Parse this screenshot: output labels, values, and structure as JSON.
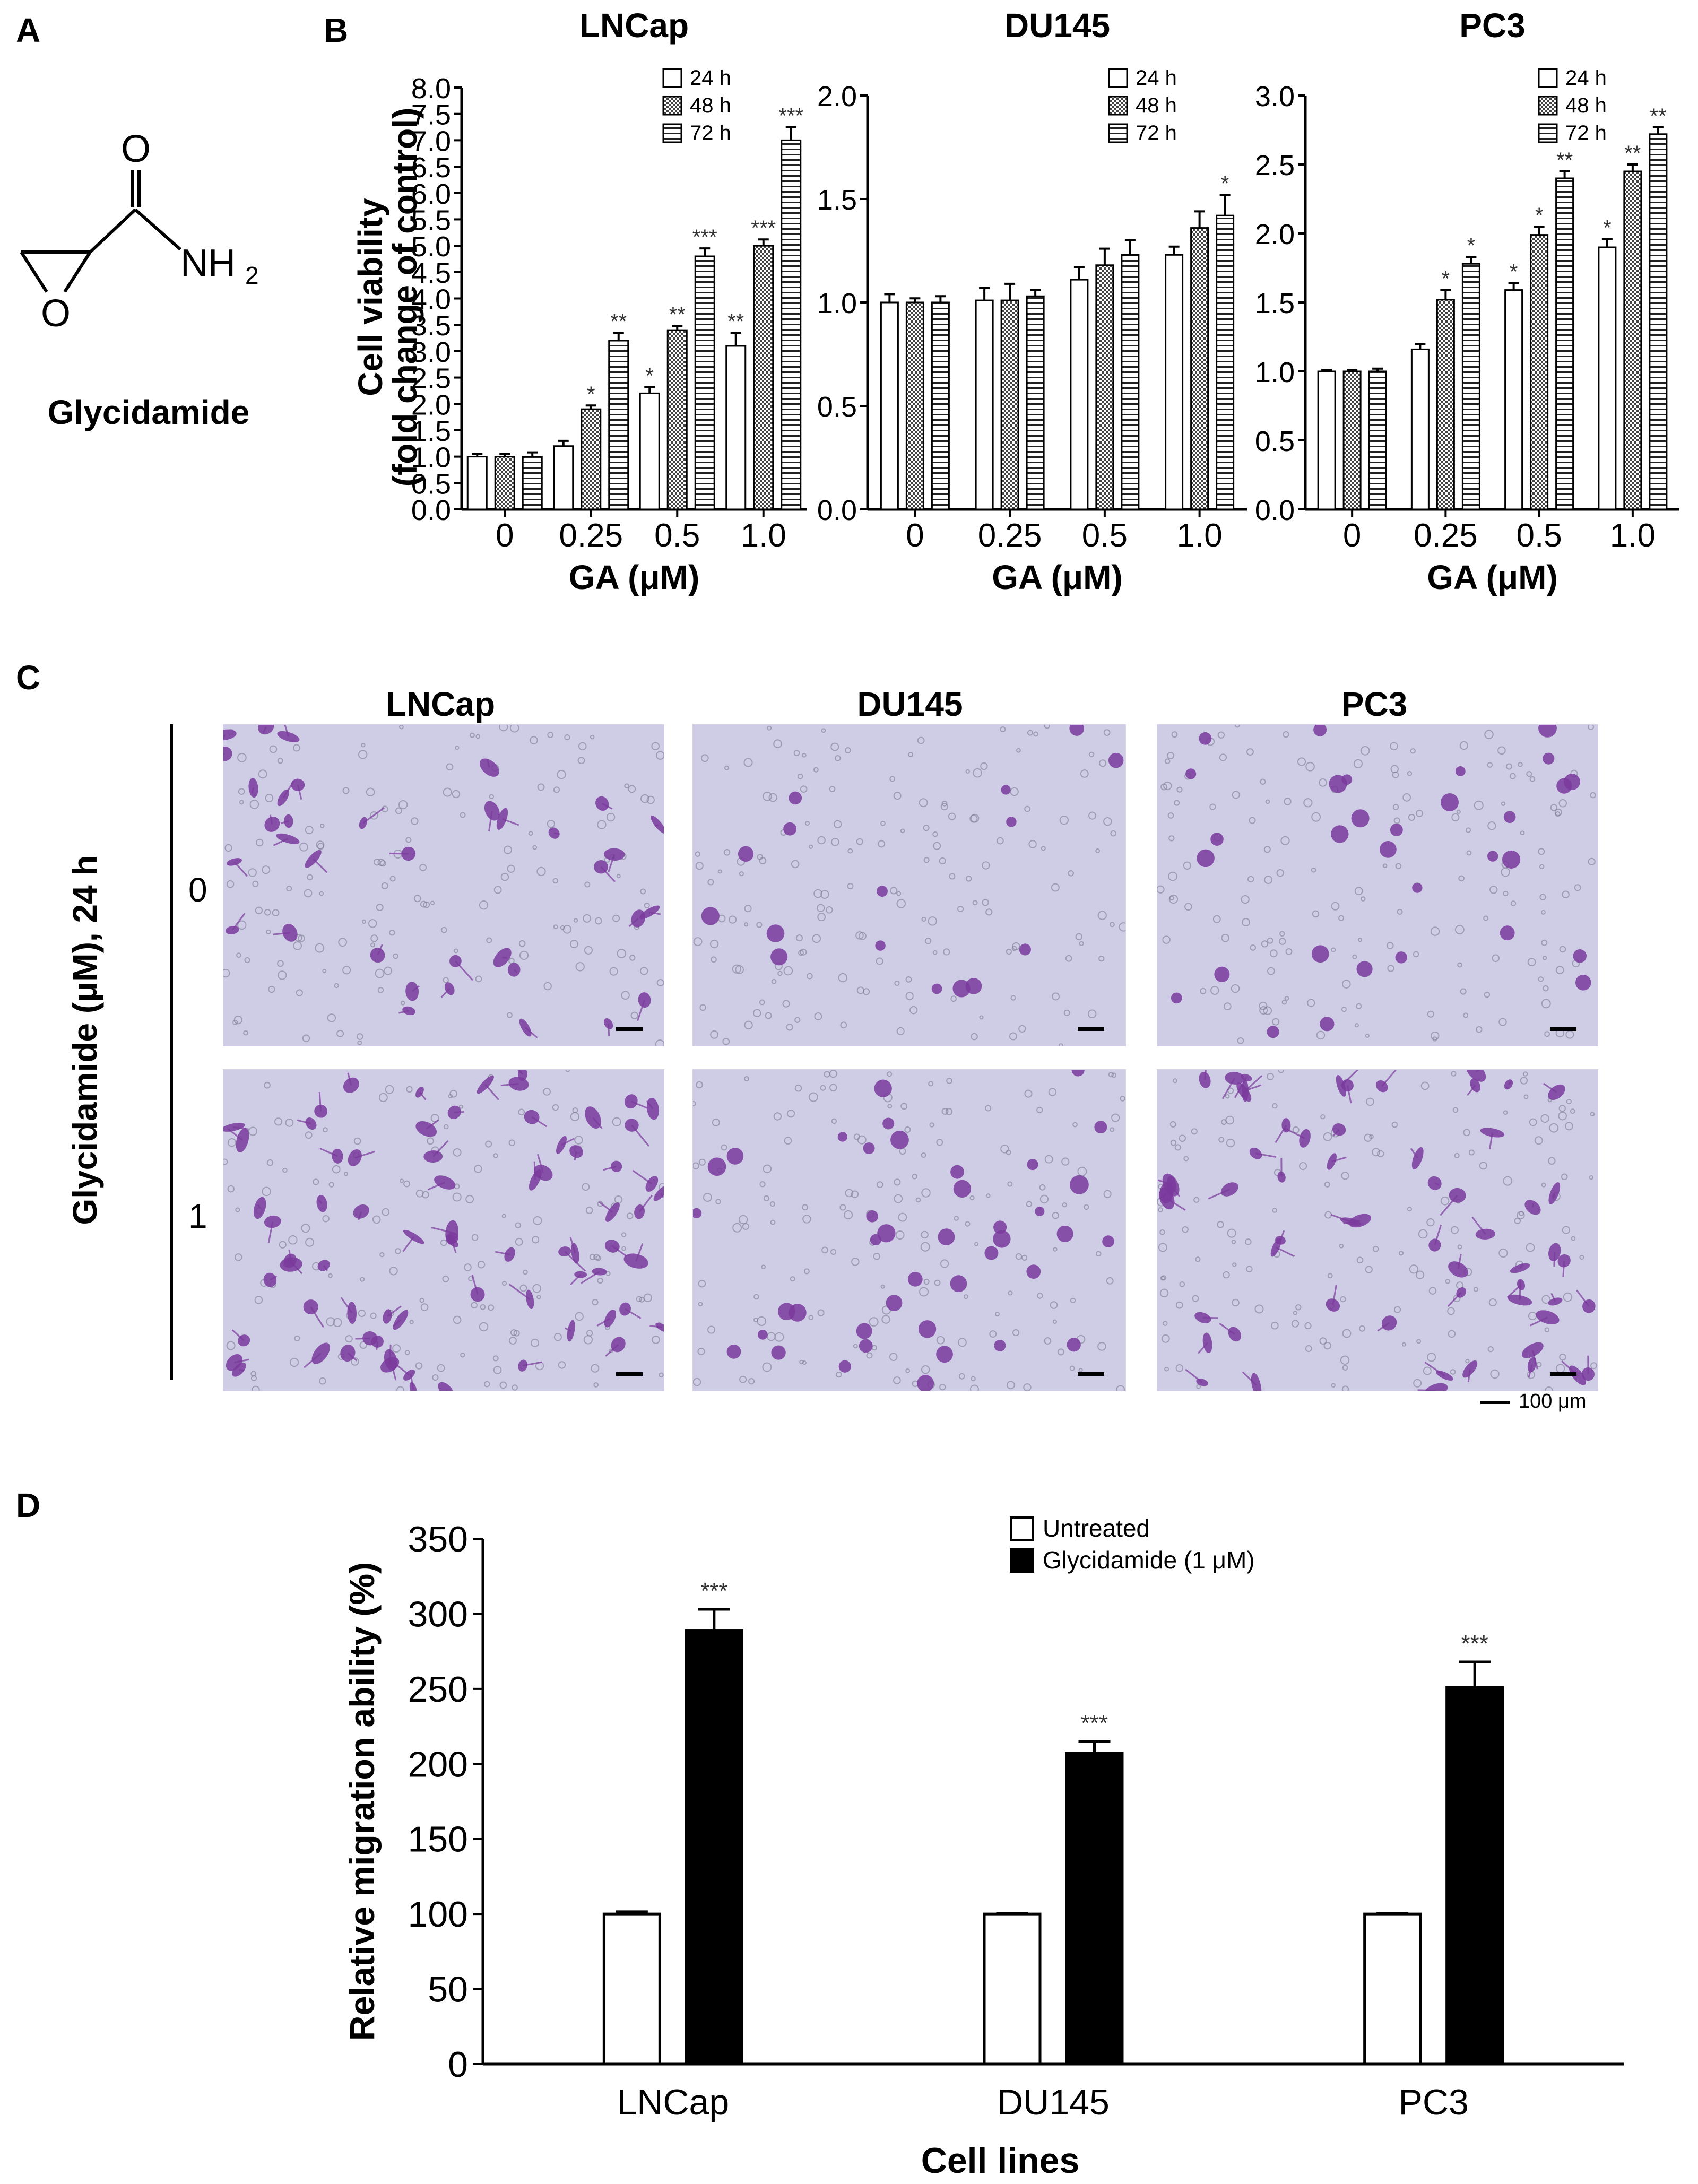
{
  "panels": {
    "a": {
      "letter": "A",
      "compound": "Glycidamide",
      "atom_o1": "O",
      "atom_nh": "NH",
      "atom_sub": "2",
      "atom_o2": "O"
    },
    "b": {
      "letter": "B"
    },
    "c": {
      "letter": "C"
    },
    "d": {
      "letter": "D"
    }
  },
  "chart_data": [
    {
      "type": "bar",
      "title": "LNCap",
      "xlabel": "GA (μM)",
      "ylabel": "Cell viability",
      "ylabel2": "(fold change of control)",
      "categories": [
        "0",
        "0.25",
        "0.5",
        "1.0"
      ],
      "ylim": [
        0,
        8
      ],
      "yticks": [
        "0.0",
        "0.5",
        "1.0",
        "1.5",
        "2.0",
        "2.5",
        "3.0",
        "3.5",
        "4.0",
        "4.5",
        "5.0",
        "5.5",
        "6.0",
        "6.5",
        "7.0",
        "7.5",
        "8.0"
      ],
      "legend_position": "top-right",
      "series": [
        {
          "name": "24 h",
          "values": [
            1.0,
            1.2,
            2.2,
            3.1
          ],
          "errors": [
            0.05,
            0.1,
            0.12,
            0.25
          ],
          "sig": [
            "",
            "",
            "*",
            "**"
          ]
        },
        {
          "name": "48 h",
          "values": [
            1.0,
            1.9,
            3.4,
            5.0
          ],
          "errors": [
            0.05,
            0.07,
            0.08,
            0.12
          ],
          "sig": [
            "",
            "*",
            "**",
            "***"
          ]
        },
        {
          "name": "72 h",
          "values": [
            1.0,
            3.2,
            4.8,
            7.0
          ],
          "errors": [
            0.08,
            0.15,
            0.15,
            0.25
          ],
          "sig": [
            "",
            "**",
            "***",
            "***"
          ]
        }
      ]
    },
    {
      "type": "bar",
      "title": "DU145",
      "xlabel": "GA (μM)",
      "categories": [
        "0",
        "0.25",
        "0.5",
        "1.0"
      ],
      "ylim": [
        0,
        2
      ],
      "yticks": [
        "0.0",
        "0.5",
        "1.0",
        "1.5",
        "2.0"
      ],
      "legend_position": "top-right",
      "series": [
        {
          "name": "24 h",
          "values": [
            1.0,
            1.01,
            1.11,
            1.23
          ],
          "errors": [
            0.04,
            0.06,
            0.06,
            0.04
          ],
          "sig": [
            "",
            "",
            "",
            ""
          ]
        },
        {
          "name": "48 h",
          "values": [
            1.0,
            1.01,
            1.18,
            1.36
          ],
          "errors": [
            0.02,
            0.08,
            0.08,
            0.08
          ],
          "sig": [
            "",
            "",
            "",
            ""
          ]
        },
        {
          "name": "72 h",
          "values": [
            1.0,
            1.03,
            1.23,
            1.42
          ],
          "errors": [
            0.03,
            0.03,
            0.07,
            0.1
          ],
          "sig": [
            "",
            "",
            "",
            "*"
          ]
        }
      ]
    },
    {
      "type": "bar",
      "title": "PC3",
      "xlabel": "GA (μM)",
      "categories": [
        "0",
        "0.25",
        "0.5",
        "1.0"
      ],
      "ylim": [
        0,
        3
      ],
      "yticks": [
        "0.0",
        "0.5",
        "1.0",
        "1.5",
        "2.0",
        "2.5",
        "3.0"
      ],
      "legend_position": "top-right",
      "series": [
        {
          "name": "24 h",
          "values": [
            1.0,
            1.16,
            1.59,
            1.9
          ],
          "errors": [
            0.01,
            0.04,
            0.05,
            0.06
          ],
          "sig": [
            "",
            "",
            "*",
            "*"
          ]
        },
        {
          "name": "48 h",
          "values": [
            1.0,
            1.52,
            1.99,
            2.45
          ],
          "errors": [
            0.01,
            0.07,
            0.06,
            0.05
          ],
          "sig": [
            "",
            "*",
            "*",
            "**"
          ]
        },
        {
          "name": "72 h",
          "values": [
            1.0,
            1.78,
            2.4,
            2.72
          ],
          "errors": [
            0.02,
            0.05,
            0.05,
            0.05
          ],
          "sig": [
            "",
            "*",
            "**",
            "**"
          ]
        }
      ]
    },
    {
      "type": "bar",
      "xlabel": "Cell lines",
      "ylabel": "Relative migration ability (%)",
      "categories": [
        "LNCap",
        "DU145",
        "PC3"
      ],
      "ylim": [
        0,
        350
      ],
      "yticks": [
        "0",
        "50",
        "100",
        "150",
        "200",
        "250",
        "300",
        "350"
      ],
      "legend_position": "top-right",
      "series": [
        {
          "name": "Untreated",
          "values": [
            100,
            100,
            100
          ],
          "errors": [
            1.5,
            0.5,
            0.5
          ],
          "sig": [
            "",
            "",
            ""
          ]
        },
        {
          "name": "Glycidamide (1 μM)",
          "values": [
            289,
            207,
            251
          ],
          "errors": [
            14,
            8,
            17
          ],
          "sig": [
            "***",
            "***",
            "***"
          ]
        }
      ]
    }
  ],
  "panel_c": {
    "column_titles": [
      "LNCap",
      "DU145",
      "PC3"
    ],
    "row_labels": [
      "0",
      "1"
    ],
    "axis_title": "Glycidamide (μM), 24 h",
    "scale_bar_label": "100 μm",
    "stain_color": "#7a3a9c",
    "background_color": "#cfcde6"
  }
}
